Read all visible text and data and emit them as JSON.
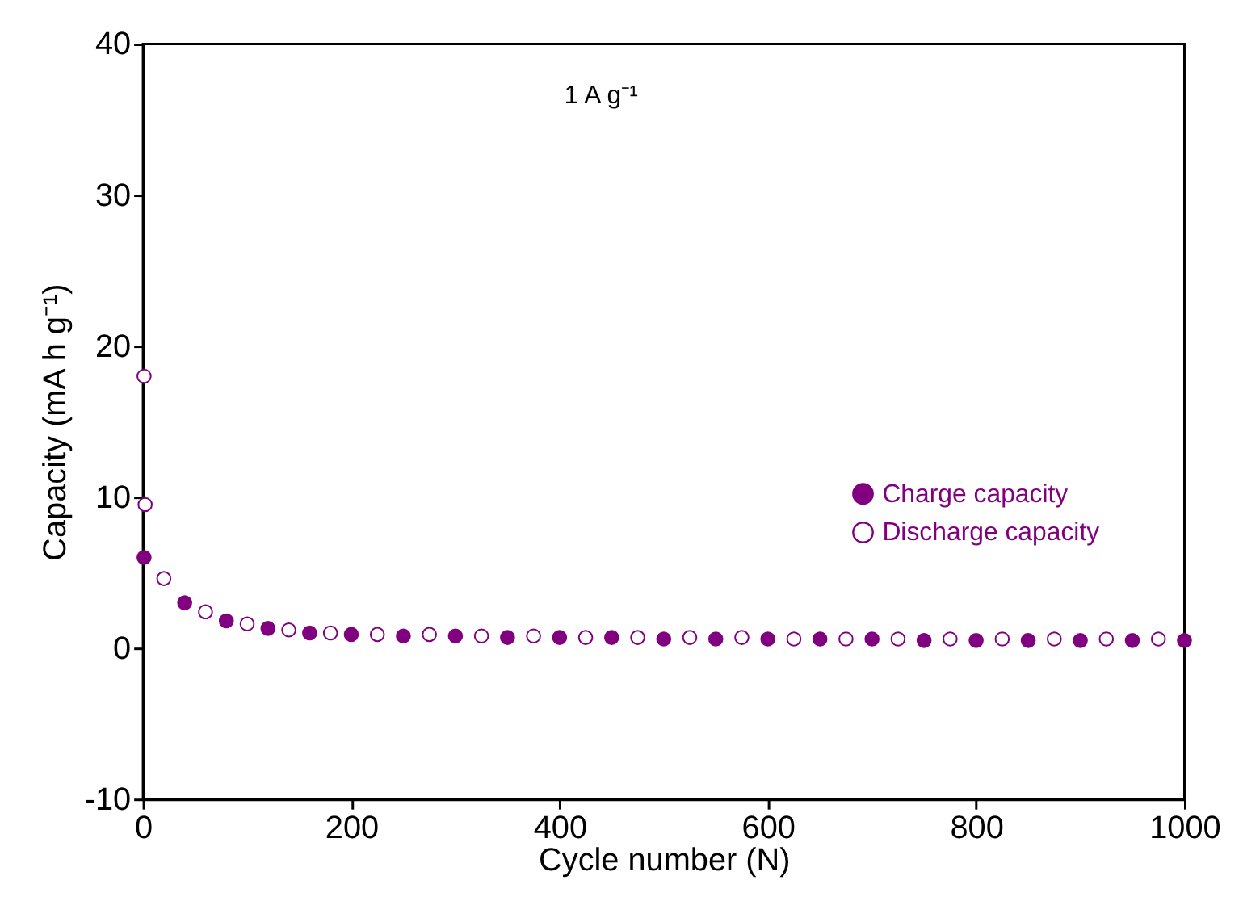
{
  "chart_data": {
    "type": "scatter",
    "xlabel": "Cycle number (N)",
    "ylabel": "Capacity (mA h g⁻¹)",
    "annotations": [
      "1 A g⁻¹"
    ],
    "series": [
      {
        "name": "Charge capacity",
        "color": "#800080",
        "x": [
          1,
          40,
          80,
          120,
          160,
          200,
          250,
          300,
          350,
          400,
          450,
          500,
          550,
          600,
          650,
          700,
          750,
          800,
          850,
          900,
          950,
          1000
        ],
        "values": [
          6.0,
          3.0,
          1.8,
          1.3,
          1.0,
          0.9,
          0.8,
          0.8,
          0.7,
          0.7,
          0.7,
          0.6,
          0.6,
          0.6,
          0.6,
          0.6,
          0.5,
          0.5,
          0.5,
          0.5,
          0.5,
          0.5
        ]
      },
      {
        "name": "Discharge capacity",
        "color": "#800080",
        "x": [
          1,
          2,
          20,
          60,
          100,
          140,
          180,
          225,
          275,
          325,
          375,
          425,
          475,
          525,
          575,
          625,
          675,
          725,
          775,
          825,
          875,
          925,
          975
        ],
        "values": [
          18,
          9.5,
          4.6,
          2.4,
          1.6,
          1.2,
          1.0,
          0.9,
          0.9,
          0.8,
          0.8,
          0.7,
          0.7,
          0.7,
          0.7,
          0.6,
          0.6,
          0.6,
          0.6,
          0.6,
          0.6,
          0.6,
          0.6
        ]
      }
    ],
    "xlim": [
      0,
      1000
    ],
    "xticks": [
      0,
      200,
      400,
      600,
      800,
      1000
    ],
    "ylim": [
      -10,
      40
    ],
    "yticks": [
      -10,
      0,
      10,
      20,
      30,
      40
    ],
    "grid": false,
    "legend": "right",
    "marker": "circle"
  }
}
